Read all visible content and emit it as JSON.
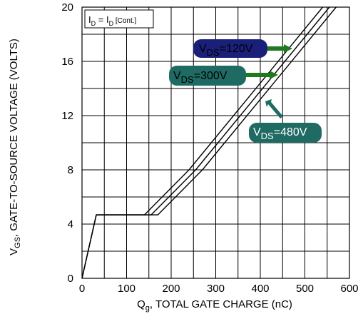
{
  "chart_data": {
    "type": "line",
    "title": "",
    "xlabel": {
      "main": "Q",
      "sub": "g",
      "rest": ", TOTAL GATE CHARGE (nC)"
    },
    "ylabel": {
      "main": "V",
      "sub": "GS",
      "rest": ", GATE-TO-SOURCE VOLTAGE (VOLTS)"
    },
    "xlim": [
      0,
      600
    ],
    "ylim": [
      0,
      20
    ],
    "x_ticks": [
      0,
      100,
      200,
      300,
      400,
      500,
      600
    ],
    "y_ticks": [
      0,
      4,
      8,
      12,
      16,
      20
    ],
    "x_tick_labels": [
      "0",
      "100",
      "200",
      "300",
      "400",
      "500",
      "600"
    ],
    "y_tick_labels": [
      "0",
      "4",
      "8",
      "12",
      "16",
      "20"
    ],
    "grid": true,
    "grid_x_step": 50,
    "grid_y_step": 2,
    "condition": {
      "main1": "I",
      "sub1": "D",
      "mid": " = I",
      "sub2": "D",
      "rest": " [Cont.]"
    },
    "series": [
      {
        "name": "V_DS=120V",
        "label": {
          "main": "V",
          "sub": "DS",
          "rest": "=120V"
        },
        "fill": "#1a1f7a",
        "text_color": "#000000",
        "arrow_color": "#1f7a1f",
        "x": [
          0,
          32,
          42,
          140,
          240,
          540
        ],
        "y": [
          0,
          4.68,
          4.68,
          4.68,
          8.0,
          20.0
        ]
      },
      {
        "name": "V_DS=300V",
        "label": {
          "main": "V",
          "sub": "DS",
          "rest": "=300V"
        },
        "fill": "#1f6b63",
        "text_color": "#000000",
        "arrow_color": "#1f7a1f",
        "x": [
          0,
          32,
          42,
          155,
          255,
          555
        ],
        "y": [
          0,
          4.68,
          4.68,
          4.68,
          8.0,
          20.0
        ]
      },
      {
        "name": "V_DS=480V",
        "label": {
          "main": "V",
          "sub": "DS",
          "rest": "=480V"
        },
        "fill": "#1f6b63",
        "text_color": "#ffffff",
        "arrow_color": "#1f6b63",
        "x": [
          0,
          32,
          42,
          170,
          270,
          570
        ],
        "y": [
          0,
          4.68,
          4.68,
          4.68,
          8.0,
          20.0
        ]
      }
    ]
  }
}
